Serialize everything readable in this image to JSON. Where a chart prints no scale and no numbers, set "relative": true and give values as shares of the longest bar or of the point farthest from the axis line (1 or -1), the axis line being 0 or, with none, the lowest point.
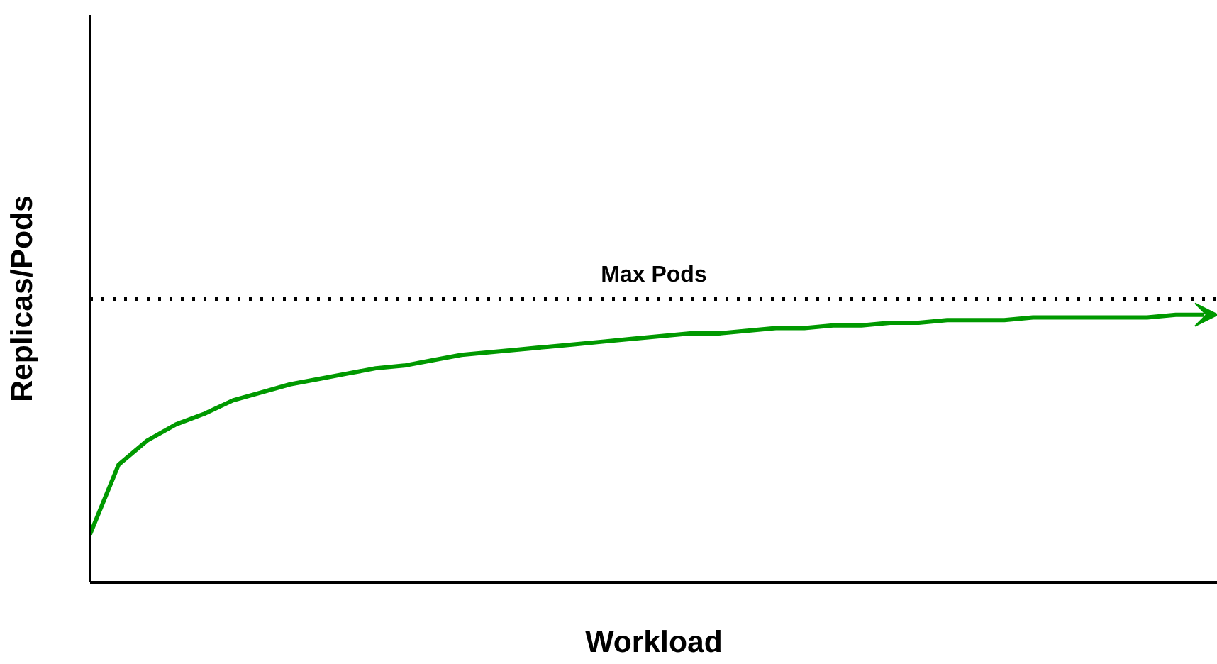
{
  "chart_data": {
    "type": "line",
    "relative": true,
    "xlabel": "Workload",
    "ylabel": "Replicas/Pods",
    "categories": [
      null,
      null,
      null,
      null,
      null,
      null,
      null,
      null,
      null,
      null,
      null,
      null,
      null,
      null,
      null,
      null,
      null,
      null,
      null,
      null,
      null,
      null,
      null,
      null,
      null,
      null,
      null,
      null,
      null,
      null,
      null,
      null,
      null,
      null,
      null,
      null,
      null,
      null,
      null,
      null
    ],
    "series": [
      {
        "color": "#009900",
        "values": [
          0.18,
          0.44,
          0.53,
          0.59,
          0.63,
          0.68,
          0.71,
          0.74,
          0.76,
          0.78,
          0.8,
          0.81,
          0.83,
          0.85,
          0.86,
          0.87,
          0.88,
          0.89,
          0.9,
          0.91,
          0.92,
          0.93,
          0.93,
          0.94,
          0.95,
          0.95,
          0.96,
          0.96,
          0.97,
          0.97,
          0.98,
          0.98,
          0.98,
          0.99,
          0.99,
          0.99,
          0.99,
          0.99,
          1.0,
          1.0
        ]
      }
    ],
    "ref_lines": [
      {
        "axis": "y",
        "value": 1.06,
        "label": "Max Pods",
        "color": "#000000",
        "line_style": "dotted"
      }
    ],
    "grid": false,
    "marker": "none",
    "line_style": "solid"
  }
}
